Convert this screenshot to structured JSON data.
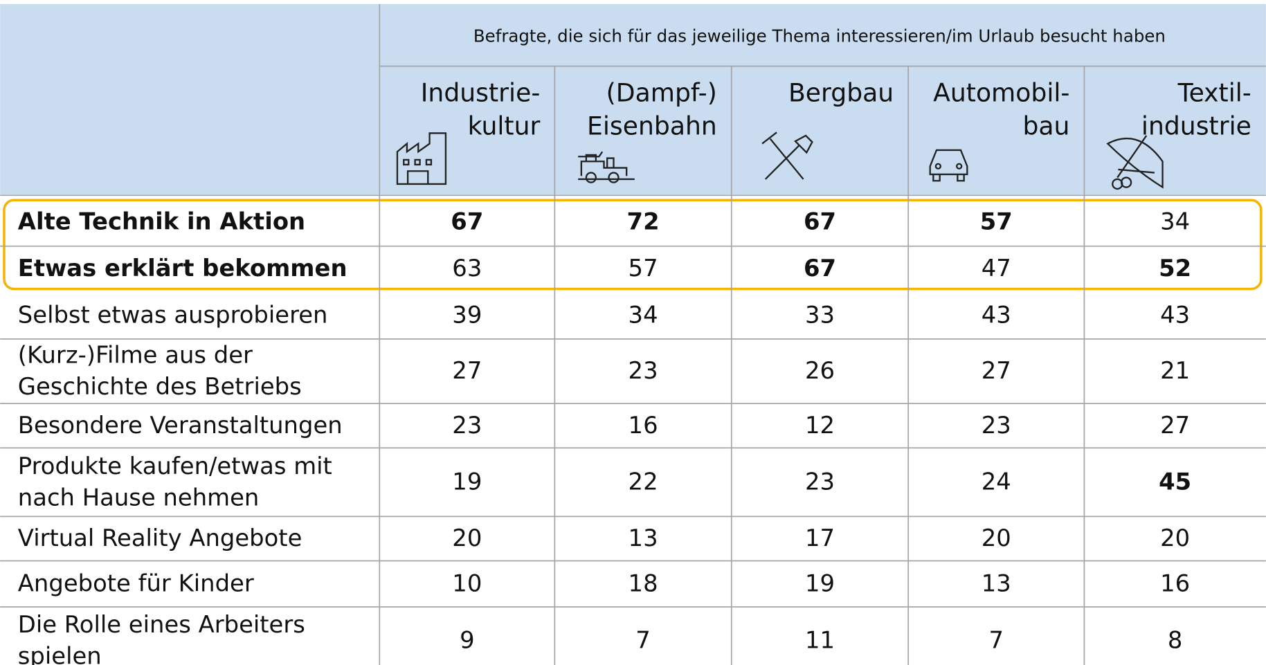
{
  "header": {
    "note": "Befragte, die sich für das jeweilige Thema interessieren/im Urlaub besucht haben",
    "columns": [
      [
        "Industrie-",
        "kultur"
      ],
      [
        "(Dampf-)",
        "Eisenbahn"
      ],
      [
        "Bergbau"
      ],
      [
        "Automobil-",
        "bau"
      ],
      [
        "Textil-",
        "industrie"
      ]
    ]
  },
  "table": {
    "rows": [
      {
        "label": [
          "Alte Technik in Aktion"
        ],
        "label_bold": true,
        "values": [
          67,
          72,
          67,
          57,
          34
        ],
        "bold": [
          true,
          true,
          true,
          true,
          false
        ]
      },
      {
        "label": [
          "Etwas erklärt bekommen"
        ],
        "label_bold": true,
        "values": [
          63,
          57,
          67,
          47,
          52
        ],
        "bold": [
          false,
          false,
          true,
          false,
          true
        ]
      },
      {
        "label": [
          "Selbst etwas ausprobieren"
        ],
        "label_bold": false,
        "values": [
          39,
          34,
          33,
          43,
          43
        ],
        "bold": [
          false,
          false,
          false,
          false,
          false
        ]
      },
      {
        "label": [
          "(Kurz-)Filme aus der",
          "Geschichte des Betriebs"
        ],
        "label_bold": false,
        "values": [
          27,
          23,
          26,
          27,
          21
        ],
        "bold": [
          false,
          false,
          false,
          false,
          false
        ]
      },
      {
        "label": [
          "Besondere Veranstaltungen"
        ],
        "label_bold": false,
        "values": [
          23,
          16,
          12,
          23,
          27
        ],
        "bold": [
          false,
          false,
          false,
          false,
          false
        ]
      },
      {
        "label": [
          "Produkte kaufen/etwas mit",
          "nach Hause nehmen"
        ],
        "label_bold": false,
        "values": [
          19,
          22,
          23,
          24,
          45
        ],
        "bold": [
          false,
          false,
          false,
          false,
          true
        ]
      },
      {
        "label": [
          "Virtual Reality Angebote"
        ],
        "label_bold": false,
        "values": [
          20,
          13,
          17,
          20,
          20
        ],
        "bold": [
          false,
          false,
          false,
          false,
          false
        ]
      },
      {
        "label": [
          "Angebote für Kinder"
        ],
        "label_bold": false,
        "values": [
          10,
          18,
          19,
          13,
          16
        ],
        "bold": [
          false,
          false,
          false,
          false,
          false
        ]
      },
      {
        "label": [
          "Die Rolle eines Arbeiters",
          "spielen"
        ],
        "label_bold": false,
        "values": [
          9,
          7,
          11,
          7,
          8
        ],
        "bold": [
          false,
          false,
          false,
          false,
          false
        ]
      }
    ]
  }
}
